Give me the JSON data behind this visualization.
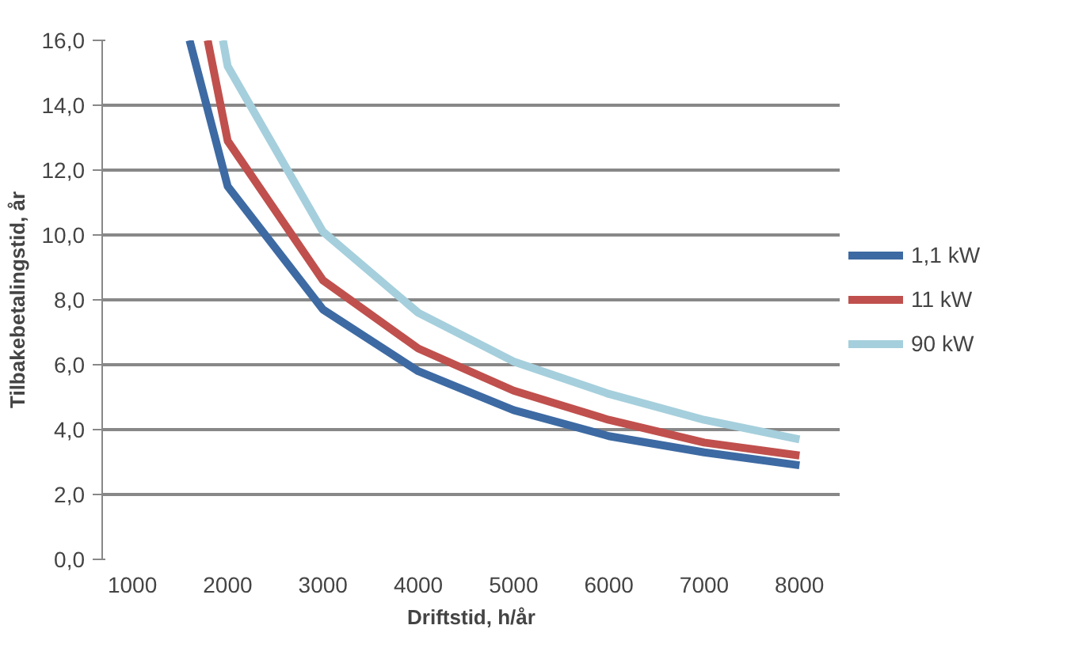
{
  "chart_data": {
    "type": "line",
    "xlabel": "Driftstid, h/år",
    "ylabel": "Tilbakebetalingstid, år",
    "xlim": [
      683,
      8430
    ],
    "xticks": [
      1000,
      2000,
      3000,
      4000,
      5000,
      6000,
      7000,
      8000
    ],
    "ylim": [
      0,
      16
    ],
    "yticks": [
      {
        "value": 0,
        "label": "0,0"
      },
      {
        "value": 2,
        "label": "2,0"
      },
      {
        "value": 4,
        "label": "4,0"
      },
      {
        "value": 6,
        "label": "6,0"
      },
      {
        "value": 8,
        "label": "8,0"
      },
      {
        "value": 10,
        "label": "10,0"
      },
      {
        "value": 12,
        "label": "12,0"
      },
      {
        "value": 14,
        "label": "14,0"
      },
      {
        "value": 16,
        "label": "16,0"
      }
    ],
    "grid": "y",
    "legend": "right",
    "marker": "none",
    "line_style": "solid",
    "series": [
      {
        "name": "1,1 kW",
        "color": "#3d6aa3",
        "x": [
          1600,
          2000,
          3000,
          4000,
          5000,
          6000,
          7000,
          8000
        ],
        "values": [
          16,
          11.5,
          7.7,
          5.8,
          4.6,
          3.8,
          3.3,
          2.9
        ]
      },
      {
        "name": "11 kW",
        "color": "#c0504d",
        "x": [
          1790,
          2000,
          3000,
          4000,
          5000,
          6000,
          7000,
          8000
        ],
        "values": [
          16,
          12.9,
          8.6,
          6.5,
          5.2,
          4.3,
          3.6,
          3.2
        ]
      },
      {
        "name": "90 kW",
        "color": "#a5cfdc",
        "x": [
          1950,
          2000,
          3000,
          4000,
          5000,
          6000,
          7000,
          8000
        ],
        "values": [
          16,
          15.2,
          10.1,
          7.6,
          6.1,
          5.1,
          4.3,
          3.7
        ]
      }
    ]
  }
}
